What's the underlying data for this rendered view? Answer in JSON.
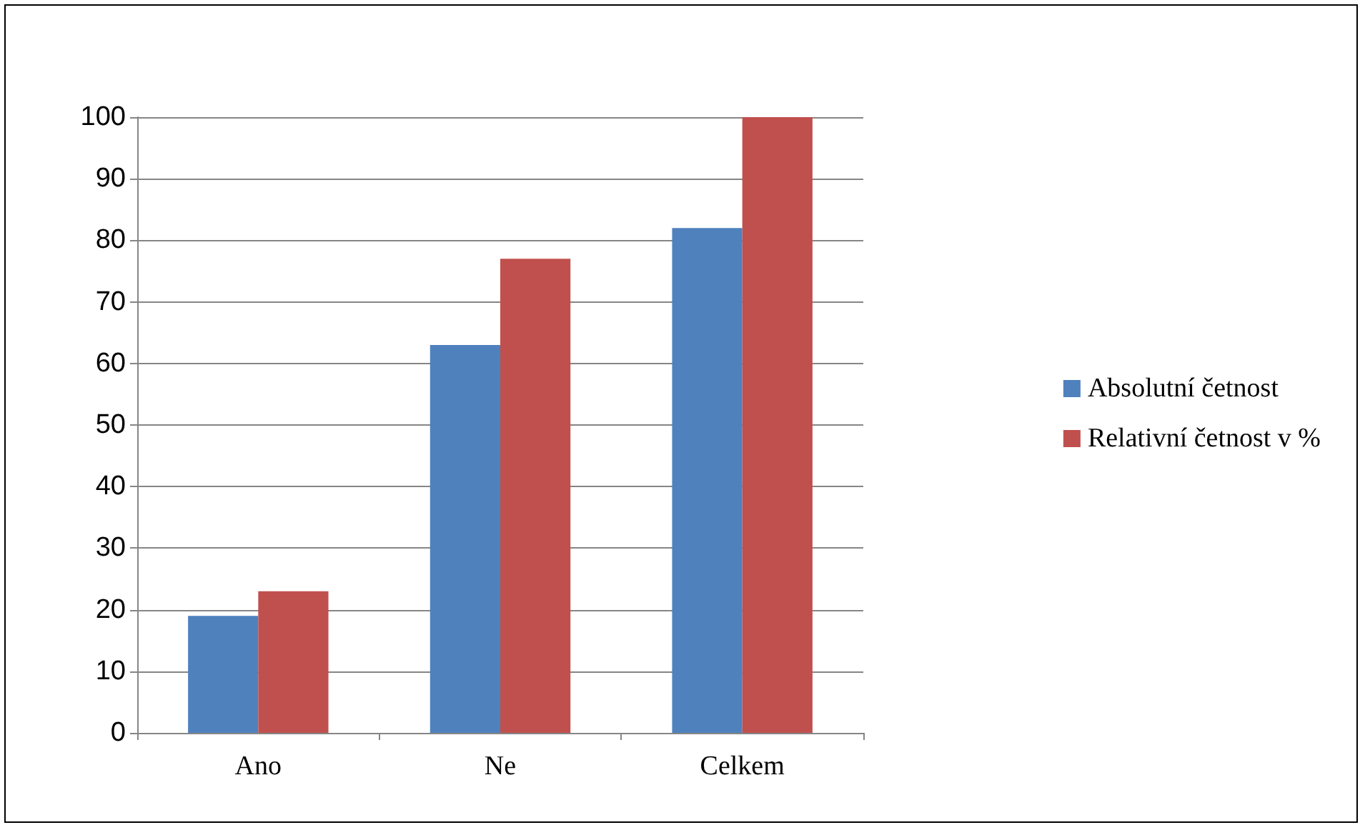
{
  "chart_data": {
    "type": "bar",
    "categories": [
      "Ano",
      "Ne",
      "Celkem"
    ],
    "series": [
      {
        "name": "Absolutní četnost",
        "color": "#4f81bd",
        "values": [
          19,
          63,
          82
        ]
      },
      {
        "name": "Relativní četnost v %",
        "color": "#c0504d",
        "values": [
          23,
          77,
          100
        ]
      }
    ],
    "ylim": [
      0,
      100
    ],
    "yticks": [
      0,
      10,
      20,
      30,
      40,
      50,
      60,
      70,
      80,
      90,
      100
    ],
    "grid": "y",
    "legend": "right"
  }
}
